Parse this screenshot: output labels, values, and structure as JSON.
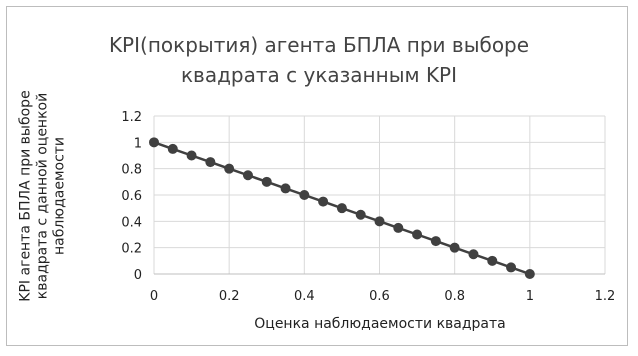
{
  "chart_data": {
    "type": "line",
    "title_lines": [
      "KPI(покрытия)  агента БПЛА при выборе",
      "квадрата с указанным KPI"
    ],
    "ylabel_lines": [
      "KPI агента БПЛА при выборе",
      "квадрата с данной оценкой",
      "наблюдаемости"
    ],
    "xlabel": "Оценка наблюдаемости квадрата",
    "x_ticks": [
      "0",
      "0.2",
      "0.4",
      "0.6",
      "0.8",
      "1",
      "1.2"
    ],
    "y_ticks": [
      "0",
      "0.2",
      "0.4",
      "0.6",
      "0.8",
      "1",
      "1.2"
    ],
    "xlim": [
      0,
      1.2
    ],
    "ylim": [
      0,
      1.2
    ],
    "grid": true,
    "series": [
      {
        "x": [
          0,
          0.05,
          0.1,
          0.15,
          0.2,
          0.25,
          0.3,
          0.35,
          0.4,
          0.45,
          0.5,
          0.55,
          0.6,
          0.65,
          0.7,
          0.75,
          0.8,
          0.85,
          0.9,
          0.95,
          1.0
        ],
        "y": [
          1.0,
          0.95,
          0.9,
          0.85,
          0.8,
          0.75,
          0.7,
          0.65,
          0.6,
          0.55,
          0.5,
          0.45,
          0.4,
          0.35,
          0.3,
          0.25,
          0.2,
          0.15,
          0.1,
          0.05,
          0.0
        ],
        "color": "#404040"
      }
    ]
  }
}
